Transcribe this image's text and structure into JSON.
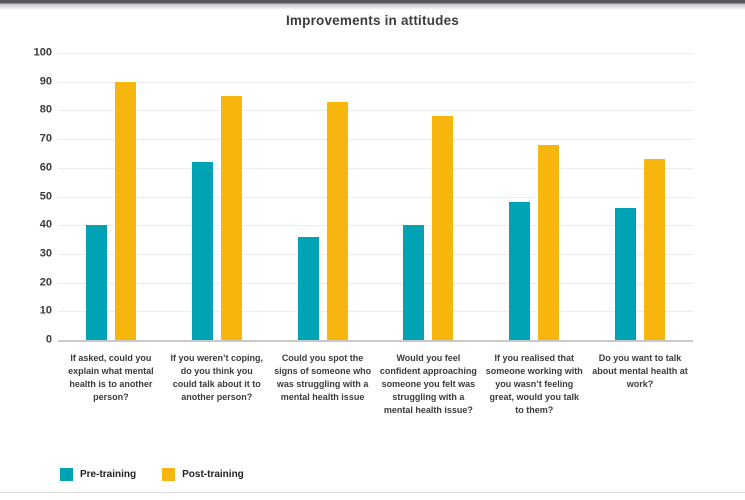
{
  "chart_data": {
    "type": "bar",
    "title": "Improvements in attitudes",
    "categories": [
      "If asked, could you explain what mental health is to another person?",
      "If you weren’t coping, do you think you could talk about it to another person?",
      "Could you spot the signs of someone who was struggling with a mental health issue",
      "Would you feel confident approaching someone you felt was struggling with a mental health issue?",
      "If you realised that someone working with you wasn’t feeling great, would you talk to them?",
      "Do you want to talk about mental health at work?"
    ],
    "series": [
      {
        "name": "Pre-training",
        "color": "#00a3b4",
        "values": [
          40,
          62,
          36,
          40,
          48,
          46
        ]
      },
      {
        "name": "Post-training",
        "color": "#f6b60e",
        "values": [
          90,
          85,
          83,
          78,
          68,
          63
        ]
      }
    ],
    "ylim": [
      0,
      100
    ],
    "ytick_step": 10,
    "grid": true,
    "legend_position": "bottom-left"
  },
  "colors": {
    "gridline": "#ececec",
    "axis_line": "#c9c9c9",
    "text": "#3b3b3b",
    "top_strip": "#56575a",
    "divider": "#dddddd"
  }
}
